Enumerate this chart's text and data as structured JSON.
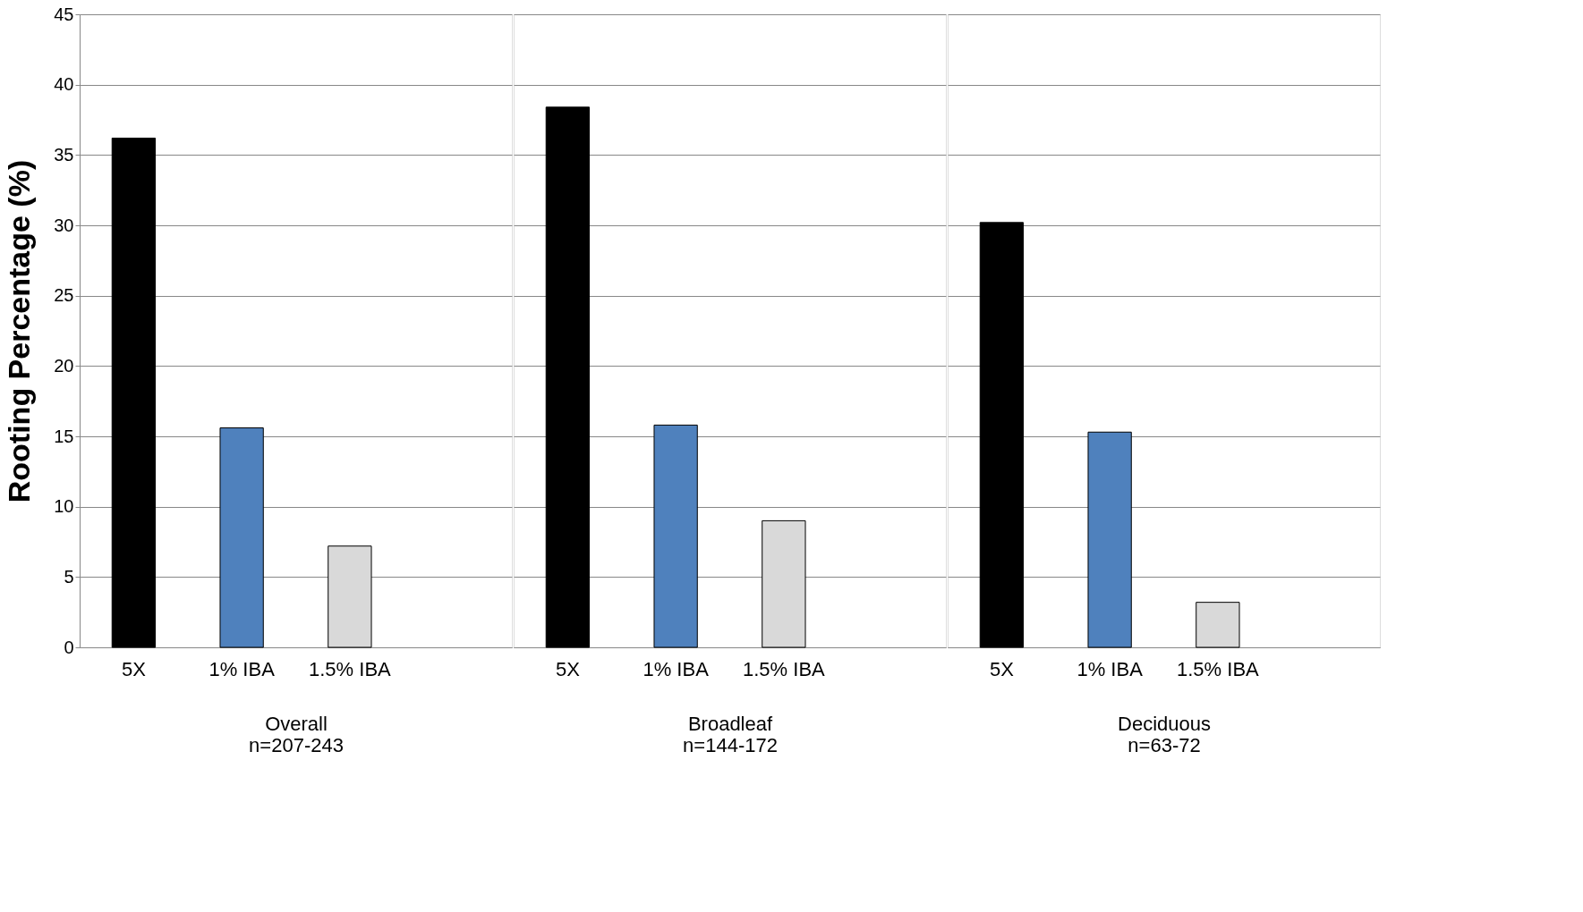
{
  "chart_data": [
    {
      "type": "bar",
      "xlabel": "Overall\nn=207-243",
      "ylabel": "Rooting Percentage (%)",
      "categories": [
        "5X",
        "1% IBA",
        "1.5% IBA",
        null
      ],
      "values": [
        36.2,
        15.6,
        7.2,
        null
      ],
      "colors": [
        "#000000",
        "#4f81bd",
        "#d9d9d9",
        "#ffffff"
      ],
      "ylim": [
        0,
        45
      ],
      "yticks": [
        0,
        5,
        10,
        15,
        20,
        25,
        30,
        35,
        40,
        45
      ],
      "grid": "y"
    },
    {
      "type": "bar",
      "xlabel": "Broadleaf\nn=144-172",
      "categories": [
        "5X",
        "1% IBA",
        "1.5% IBA",
        null
      ],
      "values": [
        38.4,
        15.8,
        9.0,
        null
      ],
      "colors": [
        "#000000",
        "#4f81bd",
        "#d9d9d9",
        "#ffffff"
      ],
      "ylim": [
        0,
        45
      ],
      "yticks": [
        0,
        5,
        10,
        15,
        20,
        25,
        30,
        35,
        40,
        45
      ],
      "grid": "y",
      "tick_labels": "x"
    },
    {
      "type": "bar",
      "xlabel": "Deciduous\nn=63-72",
      "categories": [
        "5X",
        "1% IBA",
        "1.5% IBA",
        null
      ],
      "values": [
        30.2,
        15.3,
        3.2,
        null
      ],
      "colors": [
        "#000000",
        "#4f81bd",
        "#d9d9d9",
        "#ffffff"
      ],
      "ylim": [
        0,
        45
      ],
      "yticks": [
        0,
        5,
        10,
        15,
        20,
        25,
        30,
        35,
        40,
        45
      ],
      "grid": "y",
      "tick_labels": "x"
    }
  ]
}
